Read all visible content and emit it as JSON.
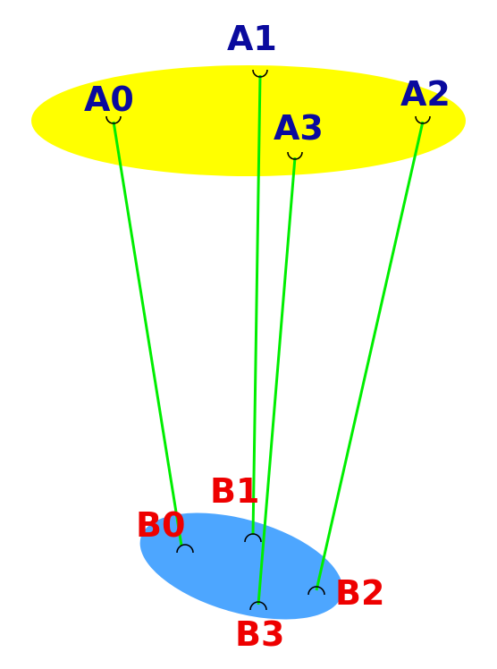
{
  "colors": {
    "top_platform": "#ffff00",
    "bottom_platform": "#4da6ff",
    "cable": "#00ee00",
    "label_top": "#0a0a9e",
    "label_bottom": "#ee0000",
    "hook": "#000000"
  },
  "top_points": [
    {
      "label": "A0"
    },
    {
      "label": "A1"
    },
    {
      "label": "A2"
    },
    {
      "label": "A3"
    }
  ],
  "bottom_points": [
    {
      "label": "B0"
    },
    {
      "label": "B1"
    },
    {
      "label": "B2"
    },
    {
      "label": "B3"
    }
  ],
  "cables": [
    {
      "from": "A0",
      "to": "B0"
    },
    {
      "from": "A1",
      "to": "B1"
    },
    {
      "from": "A2",
      "to": "B2"
    },
    {
      "from": "A3",
      "to": "B3"
    }
  ]
}
